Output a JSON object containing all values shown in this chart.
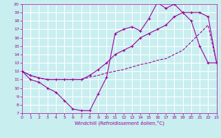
{
  "xlabel": "Windchill (Refroidissement éolien,°C)",
  "bg_color": "#c8eef0",
  "grid_color": "#ffffff",
  "line_color": "#990099",
  "xmin": 0,
  "xmax": 23,
  "ymin": 7,
  "ymax": 20,
  "yticks": [
    7,
    8,
    9,
    10,
    11,
    12,
    13,
    14,
    15,
    16,
    17,
    18,
    19,
    20
  ],
  "xticks": [
    0,
    1,
    2,
    3,
    4,
    5,
    6,
    7,
    8,
    9,
    10,
    11,
    12,
    13,
    14,
    15,
    16,
    17,
    18,
    19,
    20,
    21,
    22,
    23
  ],
  "line1_x": [
    0,
    1,
    2,
    3,
    4,
    5,
    6,
    7,
    8,
    9,
    10,
    11,
    12,
    13,
    14,
    15,
    16,
    17,
    18,
    19,
    20,
    21,
    22,
    23
  ],
  "line1_y": [
    12,
    11,
    10.7,
    10,
    9.5,
    8.5,
    7.5,
    7.3,
    7.3,
    9.3,
    11.3,
    16.5,
    17.0,
    17.3,
    16.8,
    18.3,
    20.2,
    19.5,
    20.0,
    19.0,
    18.0,
    15.0,
    13.0,
    13.0
  ],
  "line2_x": [
    0,
    1,
    2,
    3,
    4,
    5,
    6,
    7,
    8,
    9,
    10,
    11,
    12,
    13,
    14,
    15,
    16,
    17,
    18,
    19,
    20,
    21,
    22,
    23
  ],
  "line2_y": [
    12,
    11.5,
    11.2,
    11.0,
    11.0,
    11.0,
    11.0,
    11.0,
    11.5,
    12.2,
    13.0,
    14.0,
    14.5,
    15.0,
    16.0,
    16.5,
    17.0,
    17.5,
    18.5,
    19.0,
    19.0,
    19.0,
    18.5,
    13.0
  ],
  "line3_x": [
    0,
    1,
    2,
    3,
    4,
    5,
    6,
    7,
    8,
    9,
    10,
    11,
    12,
    13,
    14,
    15,
    16,
    17,
    18,
    19,
    20,
    21,
    22,
    23
  ],
  "line3_y": [
    12,
    11.5,
    11.2,
    11.0,
    11.0,
    11.0,
    11.0,
    11.0,
    11.3,
    11.5,
    11.8,
    12.0,
    12.2,
    12.5,
    12.8,
    13.0,
    13.3,
    13.5,
    14.0,
    14.5,
    15.5,
    16.5,
    17.5,
    13.0
  ]
}
